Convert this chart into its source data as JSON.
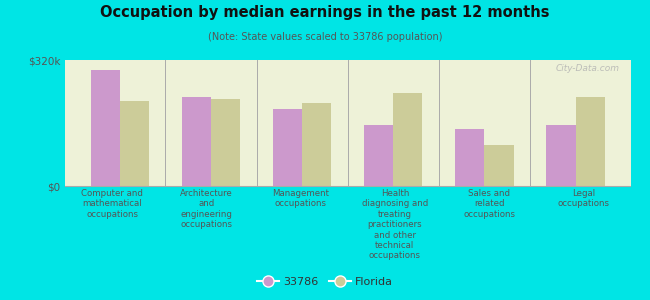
{
  "title": "Occupation by median earnings in the past 12 months",
  "subtitle": "(Note: State values scaled to 33786 population)",
  "background_color": "#00e5e5",
  "plot_bg_color": "#eef2d8",
  "categories": [
    "Computer and\nmathematical\noccupations",
    "Architecture\nand\nengineering\noccupations",
    "Management\noccupations",
    "Health\ndiagnosing and\ntreating\npractitioners\nand other\ntechnical\noccupations",
    "Sales and\nrelated\noccupations",
    "Legal\noccupations"
  ],
  "values_33786": [
    295000,
    225000,
    195000,
    155000,
    145000,
    155000
  ],
  "values_florida": [
    215000,
    220000,
    210000,
    235000,
    105000,
    225000
  ],
  "color_33786": "#cc99cc",
  "color_florida": "#cccc99",
  "ylim": [
    0,
    320000
  ],
  "yticks": [
    0,
    320000
  ],
  "ytick_labels": [
    "$0",
    "$320k"
  ],
  "legend_label_33786": "33786",
  "legend_label_florida": "Florida",
  "watermark": "City-Data.com"
}
